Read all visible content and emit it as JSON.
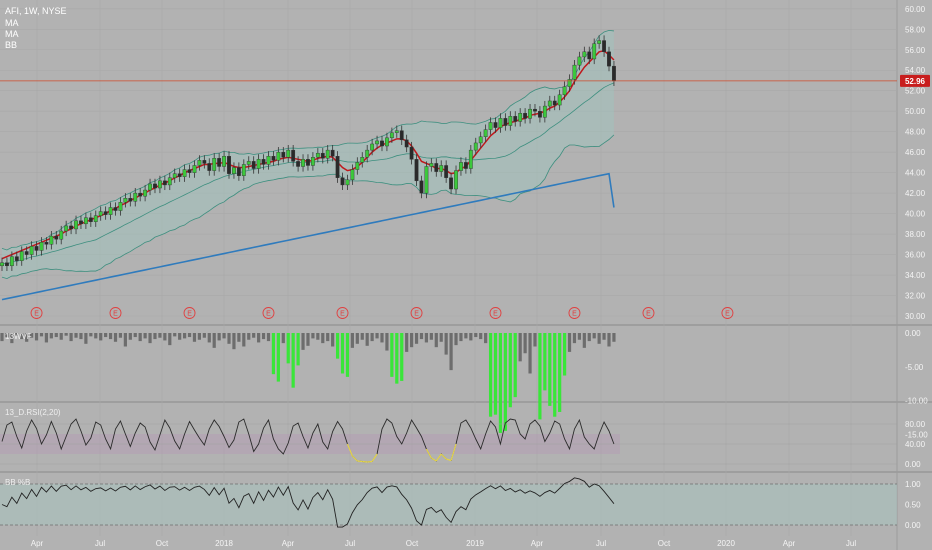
{
  "header": {
    "symbol_line": "AFI, 1W, NYSE",
    "ind1": "MA",
    "ind2": "MA",
    "ind3": "BB"
  },
  "colors": {
    "background": "#b2b2b2",
    "up": "#3cc83c",
    "down": "#2a2a2a",
    "ma_fast": "#c0181c",
    "ma_slow": "#2f7bbd",
    "bb_band": "#3d8f7f",
    "bb_fill": "#9fc4bd",
    "price_line": "#d04a2a",
    "price_tag": "#c81d1d",
    "wvf_gray": "#6d6d6d",
    "wvf_green": "#39e639",
    "rsi_line": "#2b2b2b",
    "rsi_low": "#e5d54a",
    "rsi_band": "#b49ab4",
    "bbp_fill": "#a9c2bd",
    "earnings": "#e04040"
  },
  "current_price": "52.96",
  "panes": {
    "wvf_label": "13WVF",
    "rsi_label": "13_D.RSI(2,20)",
    "bbp_label": "BB %B"
  },
  "earnings_marker": "E",
  "chart_data": {
    "type": "candlestick",
    "title": "AFI, 1W, NYSE",
    "x_tick_labels": [
      "Apr",
      "Jul",
      "Oct",
      "2018",
      "Apr",
      "Jul",
      "Oct",
      "2019",
      "Apr",
      "Jul",
      "Oct",
      "2020",
      "Apr",
      "Jul"
    ],
    "price_axis": {
      "ticks": [
        "30.00",
        "32.00",
        "34.00",
        "36.00",
        "38.00",
        "40.00",
        "42.00",
        "44.00",
        "46.00",
        "48.00",
        "50.00",
        "52.00",
        "54.00",
        "56.00",
        "58.00",
        "60.00"
      ],
      "ylim": [
        29.2,
        61
      ]
    },
    "wvf_axis": {
      "ticks": [
        "0.00",
        "-5.00",
        "-10.00",
        "-15.00"
      ],
      "ylim": [
        -15.5,
        1
      ]
    },
    "rsi_axis": {
      "ticks": [
        "80.00",
        "40.00",
        "0.00"
      ],
      "ylim": [
        -5,
        95
      ]
    },
    "bbp_axis": {
      "ticks": [
        "1.00",
        "0.50",
        "0.00"
      ],
      "ylim": [
        -0.1,
        1.3
      ]
    },
    "weekly_closes": [
      35.2,
      34.9,
      35.8,
      35.4,
      36.3,
      36.0,
      36.8,
      36.4,
      37.2,
      37.0,
      37.8,
      37.5,
      38.3,
      38.8,
      38.5,
      39.3,
      39.0,
      39.6,
      39.2,
      39.8,
      40.2,
      39.9,
      40.6,
      40.3,
      41.1,
      41.5,
      41.2,
      42.0,
      41.7,
      42.3,
      42.9,
      42.5,
      43.2,
      42.8,
      43.5,
      43.9,
      43.6,
      44.3,
      44.0,
      44.7,
      45.2,
      44.9,
      44.2,
      45.4,
      44.6,
      45.6,
      43.9,
      44.5,
      43.7,
      44.8,
      45.1,
      44.4,
      45.3,
      44.8,
      45.6,
      45.2,
      46.0,
      45.5,
      46.2,
      45.1,
      44.6,
      45.3,
      44.7,
      45.5,
      45.9,
      45.4,
      46.2,
      45.6,
      43.5,
      42.8,
      43.3,
      44.3,
      45.0,
      45.5,
      46.2,
      46.8,
      47.1,
      46.6,
      47.4,
      47.9,
      48.1,
      47.2,
      46.5,
      45.3,
      43.2,
      42.0,
      44.6,
      44.9,
      44.1,
      44.7,
      43.5,
      42.4,
      44.2,
      45.0,
      44.4,
      46.2,
      46.9,
      47.5,
      48.2,
      48.9,
      48.4,
      49.3,
      48.6,
      49.5,
      49.0,
      49.8,
      49.3,
      50.2,
      50.0,
      49.4,
      50.5,
      51.0,
      50.6,
      51.6,
      52.4,
      53.1,
      54.5,
      55.3,
      55.8,
      55.1,
      56.6,
      56.9,
      55.8,
      54.4,
      52.96
    ],
    "series": [
      {
        "name": "MA",
        "values": [
          35.6,
          35.8,
          36.0,
          36.2,
          36.4,
          36.6,
          36.8,
          37.0,
          37.2,
          37.4,
          37.6,
          37.8,
          38.0,
          38.3,
          38.5,
          38.8,
          39.0,
          39.2,
          39.4,
          39.6,
          39.8,
          40.0,
          40.3,
          40.5,
          40.8,
          41.0,
          41.3,
          41.5,
          41.8,
          42.0,
          42.3,
          42.5,
          42.8,
          43.0,
          43.2,
          43.5,
          43.7,
          44.0,
          44.2,
          44.4,
          44.6,
          44.8,
          44.8,
          44.9,
          44.9,
          45.0,
          44.8,
          44.6,
          44.5,
          44.5,
          44.6,
          44.7,
          44.8,
          44.9,
          45.0,
          45.1,
          45.3,
          45.4,
          45.5,
          45.4,
          45.3,
          45.2,
          45.1,
          45.2,
          45.4,
          45.5,
          45.6,
          45.5,
          45.0,
          44.5,
          44.2,
          44.3,
          44.6,
          45.0,
          45.5,
          46.0,
          46.4,
          46.7,
          46.9,
          47.1,
          47.3,
          47.3,
          47.1,
          46.6,
          45.9,
          45.1,
          44.9,
          44.7,
          44.4,
          44.4,
          44.2,
          43.9,
          44.0,
          44.4,
          44.6,
          45.2,
          45.8,
          46.4,
          47.0,
          47.6,
          48.0,
          48.5,
          48.7,
          48.9,
          49.0,
          49.2,
          49.3,
          49.6,
          49.7,
          49.8,
          50.0,
          50.3,
          50.5,
          50.9,
          51.4,
          52.0,
          52.9,
          53.6,
          54.3,
          54.8,
          55.3,
          55.8,
          55.9,
          55.5,
          55.0
        ]
      },
      {
        "name": "MA",
        "values": [
          31.6,
          31.7,
          31.8,
          31.9,
          32.0,
          32.1,
          32.2,
          32.3,
          32.4,
          32.5,
          32.6,
          32.7,
          32.8,
          32.9,
          33.0,
          33.1,
          33.2,
          33.3,
          33.4,
          33.5,
          33.6,
          33.7,
          33.8,
          33.9,
          34.0,
          34.1,
          34.2,
          34.3,
          34.4,
          34.5,
          34.6,
          34.7,
          34.8,
          34.9,
          35.0,
          35.1,
          35.2,
          35.3,
          35.4,
          35.5,
          35.6,
          35.7,
          35.8,
          35.9,
          36.0,
          36.1,
          36.2,
          36.3,
          36.4,
          36.5,
          36.6,
          36.7,
          36.8,
          36.9,
          37.0,
          37.1,
          37.2,
          37.3,
          37.4,
          37.5,
          37.6,
          37.7,
          37.8,
          37.9,
          38.0,
          38.1,
          38.2,
          38.3,
          38.4,
          38.5,
          38.6,
          38.7,
          38.8,
          38.9,
          39.0,
          39.1,
          39.2,
          39.3,
          39.4,
          39.5,
          39.6,
          39.7,
          39.8,
          39.9,
          40.0,
          40.1,
          40.2,
          40.3,
          40.4,
          40.5,
          40.6,
          40.7,
          40.8,
          40.9,
          41.0,
          41.1,
          41.2,
          41.3,
          41.4,
          41.5,
          41.6,
          41.7,
          41.8,
          41.9,
          42.0,
          42.1,
          42.2,
          42.3,
          42.4,
          42.5,
          42.6,
          42.7,
          42.8,
          42.9,
          43.0,
          43.1,
          43.2,
          43.3,
          43.4,
          43.5,
          43.6,
          43.7,
          43.8,
          43.9,
          40.6
        ]
      }
    ],
    "earnings_weeks": [
      7,
      23,
      38,
      54,
      69,
      84,
      100,
      116,
      131,
      147
    ],
    "wvf_values": [
      -1.2,
      -0.6,
      -1.5,
      -0.4,
      -0.9,
      -1.3,
      -0.7,
      -1.1,
      -0.5,
      -1.4,
      -0.8,
      -0.6,
      -1.0,
      -0.4,
      -1.2,
      -0.7,
      -0.9,
      -1.6,
      -0.5,
      -0.8,
      -1.1,
      -0.6,
      -0.9,
      -1.3,
      -0.7,
      -2.0,
      -1.0,
      -0.6,
      -1.2,
      -0.8,
      -1.5,
      -0.9,
      -0.7,
      -1.1,
      -1.8,
      -0.5,
      -1.0,
      -0.8,
      -0.6,
      -1.3,
      -1.0,
      -0.7,
      -1.4,
      -2.2,
      -1.1,
      -0.8,
      -1.6,
      -2.4,
      -1.3,
      -2.0,
      -1.0,
      -0.7,
      -1.4,
      -0.9,
      -1.2,
      -6.1,
      -7.2,
      -1.5,
      -4.5,
      -8.1,
      -4.8,
      -2.5,
      -1.9,
      -0.8,
      -1.0,
      -1.5,
      -1.2,
      -2.0,
      -3.8,
      -6.0,
      -6.5,
      -2.2,
      -1.6,
      -1.0,
      -1.9,
      -1.2,
      -0.8,
      -1.4,
      -2.6,
      -6.5,
      -7.5,
      -7.1,
      -2.8,
      -2.1,
      -1.6,
      -0.9,
      -1.4,
      -1.0,
      -2.1,
      -1.3,
      -3.2,
      -5.5,
      -1.8,
      -1.2,
      -0.8,
      -1.1,
      -0.6,
      -0.9,
      -1.5,
      -12.4,
      -12.1,
      -14.8,
      -14.5,
      -11.0,
      -9.5,
      -4.2,
      -3.0,
      -6.0,
      -2.0,
      -12.8,
      -8.5,
      -10.8,
      -12.4,
      -11.7,
      -6.3,
      -2.8,
      -1.5,
      -1.0,
      -2.2,
      -1.2,
      -0.8,
      -1.6,
      -1.0,
      -2.0,
      -1.3,
      -0.7,
      -1.1,
      -0.5,
      -1.8,
      -1.0,
      -1.3,
      -0.8,
      -1.5,
      -3.5,
      -0.9,
      -1.2,
      -0.6,
      -1.9,
      -1.0,
      -0.8,
      -1.4,
      -1.2,
      -6.5,
      -7.2
    ],
    "wvf_green_weeks": [
      55,
      56,
      58,
      59,
      60,
      68,
      69,
      70,
      79,
      80,
      81,
      99,
      100,
      101,
      102,
      103,
      104,
      109,
      110,
      111,
      112,
      113,
      114,
      133,
      145,
      146
    ],
    "rsi_values": [
      45,
      78,
      84,
      55,
      32,
      66,
      88,
      71,
      40,
      58,
      85,
      62,
      30,
      55,
      80,
      90,
      66,
      38,
      52,
      84,
      78,
      50,
      30,
      70,
      86,
      60,
      35,
      62,
      82,
      74,
      44,
      28,
      58,
      88,
      72,
      46,
      30,
      60,
      85,
      68,
      52,
      38,
      70,
      88,
      75,
      55,
      33,
      48,
      84,
      90,
      60,
      25,
      40,
      72,
      88,
      50,
      30,
      20,
      42,
      76,
      82,
      55,
      32,
      62,
      80,
      44,
      30,
      65,
      85,
      70,
      40,
      16,
      6,
      5,
      4,
      5,
      20,
      70,
      90,
      82,
      55,
      40,
      62,
      88,
      72,
      55,
      30,
      12,
      6,
      20,
      10,
      7,
      40,
      82,
      88,
      72,
      50,
      30,
      60,
      86,
      74,
      40,
      82,
      90,
      88,
      60,
      50,
      80,
      88,
      76,
      45,
      62,
      86,
      80,
      50,
      30,
      70,
      88,
      54,
      40,
      30,
      60,
      84,
      66,
      40,
      58,
      80,
      88,
      56,
      32,
      10,
      5,
      2
    ]
  }
}
